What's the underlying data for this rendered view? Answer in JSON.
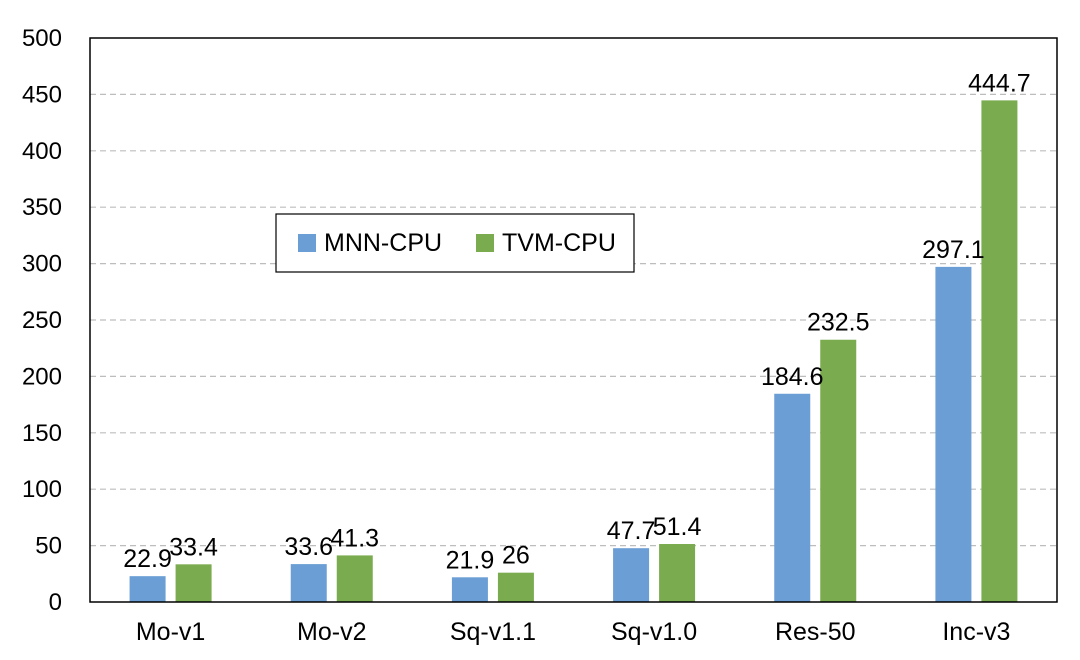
{
  "chart_data": {
    "type": "bar",
    "categories": [
      "Mo-v1",
      "Mo-v2",
      "Sq-v1.1",
      "Sq-v1.0",
      "Res-50",
      "Inc-v3"
    ],
    "series": [
      {
        "name": "MNN-CPU",
        "values": [
          22.9,
          33.6,
          21.9,
          47.7,
          184.6,
          297.1
        ],
        "color": "#6a9ed4",
        "labels": [
          "22.9",
          "33.6",
          "21.9",
          "47.7",
          "184.6",
          "297.1"
        ]
      },
      {
        "name": "TVM-CPU",
        "values": [
          33.4,
          41.3,
          26,
          51.4,
          232.5,
          444.7
        ],
        "color": "#7aab4f",
        "labels": [
          "33.4",
          "41.3",
          "26",
          "51.4",
          "232.5",
          "444.7"
        ]
      }
    ],
    "yticks": [
      "0",
      "50",
      "100",
      "150",
      "200",
      "250",
      "300",
      "350",
      "400",
      "450",
      "500"
    ],
    "ylim": [
      0,
      500
    ],
    "grid": true,
    "legend_position": "inside-upper-left"
  }
}
